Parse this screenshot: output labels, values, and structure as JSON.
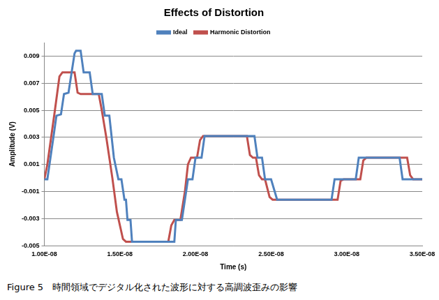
{
  "chart_data": {
    "type": "line",
    "title": "Effects of Distortion",
    "x_label": "Time (s)",
    "y_label": "Amplitude (V)",
    "xlim": [
      1e-08,
      3.5e-08
    ],
    "xticks": [
      {
        "value": 1e-08,
        "label": "1.00E-08"
      },
      {
        "value": 1.5e-08,
        "label": "1.50E-08"
      },
      {
        "value": 2e-08,
        "label": "2.00E-08"
      },
      {
        "value": 2.5e-08,
        "label": "2.50E-08"
      },
      {
        "value": 3e-08,
        "label": "3.00E-08"
      },
      {
        "value": 3.5e-08,
        "label": "3.50E-08"
      }
    ],
    "ylim": [
      -0.005,
      0.01
    ],
    "yticks": [
      -0.005,
      -0.003,
      -0.001,
      0.001,
      0.003,
      0.005,
      0.007,
      0.009
    ],
    "grid": "y",
    "legend": "top",
    "series": [
      {
        "name": "Ideal",
        "color": "#4f81bd",
        "x": [
          1e-08,
          1.02e-08,
          1.06e-08,
          1.08e-08,
          1.11e-08,
          1.13e-08,
          1.16e-08,
          1.2e-08,
          1.21e-08,
          1.24e-08,
          1.26e-08,
          1.3e-08,
          1.32e-08,
          1.38e-08,
          1.4e-08,
          1.43e-08,
          1.46e-08,
          1.49e-08,
          1.51e-08,
          1.53e-08,
          1.54e-08,
          1.55e-08,
          1.57e-08,
          1.58e-08,
          1.86e-08,
          1.87e-08,
          1.91e-08,
          1.93e-08,
          1.95e-08,
          1.98e-08,
          2e-08,
          2.04e-08,
          2.06e-08,
          2.39e-08,
          2.41e-08,
          2.44e-08,
          2.46e-08,
          2.5e-08,
          2.54e-08,
          2.9e-08,
          2.92e-08,
          3.06e-08,
          3.08e-08,
          3.35e-08,
          3.37e-08,
          3.5e-08
        ],
        "values": [
          -0.0001,
          -0.0001,
          0.003,
          0.0046,
          0.0047,
          0.0062,
          0.0063,
          0.0092,
          0.0094,
          0.0094,
          0.0078,
          0.0078,
          0.0062,
          0.0062,
          0.0046,
          0.0046,
          0.0015,
          -0.0001,
          -0.0001,
          -0.0016,
          -0.0016,
          -0.0031,
          -0.0031,
          -0.0047,
          -0.0047,
          -0.0031,
          -0.0031,
          -0.0016,
          -0.0001,
          -0.0001,
          0.0015,
          0.0015,
          0.0031,
          0.0031,
          0.0015,
          0.0015,
          -0.0001,
          -0.0001,
          -0.0016,
          -0.0016,
          -0.0001,
          -0.0001,
          0.0015,
          0.0015,
          -0.0001,
          -0.0001
        ]
      },
      {
        "name": "Harmonic Distortion",
        "color": "#c0504d",
        "x": [
          1e-08,
          1.02e-08,
          1.07e-08,
          1.1e-08,
          1.12e-08,
          1.2e-08,
          1.22e-08,
          1.24e-08,
          1.36e-08,
          1.38e-08,
          1.41e-08,
          1.45e-08,
          1.48e-08,
          1.52e-08,
          1.54e-08,
          1.82e-08,
          1.84e-08,
          1.86e-08,
          1.9e-08,
          1.93e-08,
          1.95e-08,
          1.97e-08,
          2.01e-08,
          2.03e-08,
          2.05e-08,
          2.34e-08,
          2.36e-08,
          2.38e-08,
          2.4e-08,
          2.42e-08,
          2.44e-08,
          2.46e-08,
          2.49e-08,
          2.51e-08,
          2.94e-08,
          2.96e-08,
          2.98e-08,
          3.09e-08,
          3.11e-08,
          3.13e-08,
          3.4e-08,
          3.42e-08,
          3.44e-08,
          3.5e-08
        ],
        "values": [
          -0.0001,
          0.001,
          0.005,
          0.0075,
          0.0078,
          0.0078,
          0.0063,
          0.0062,
          0.0062,
          0.005,
          0.003,
          0.0,
          -0.0025,
          -0.0045,
          -0.0047,
          -0.0047,
          -0.0035,
          -0.0031,
          -0.0031,
          -0.001,
          0.001,
          0.0015,
          0.0015,
          0.0028,
          0.0031,
          0.0031,
          0.0017,
          0.0015,
          0.0015,
          0.0002,
          -0.0001,
          -0.0001,
          -0.0014,
          -0.0016,
          -0.0016,
          -0.0002,
          -0.0001,
          -0.0001,
          0.0013,
          0.0015,
          0.0015,
          0.0002,
          -0.0001,
          -0.0001
        ]
      }
    ]
  },
  "caption": "Figure 5　時間領域でデジタル化された波形に対する高調波歪みの影響"
}
